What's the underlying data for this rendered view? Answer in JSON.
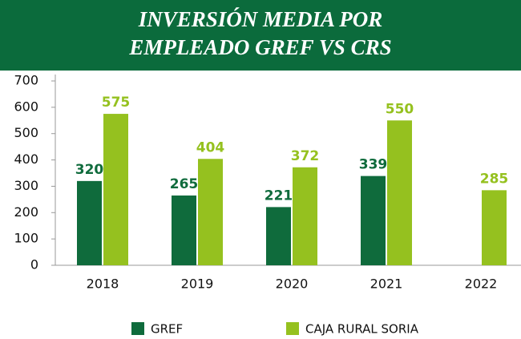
{
  "chart_data": {
    "type": "bar",
    "title": [
      "INVERSIÓN MEDIA POR",
      "EMPLEADO GREF VS CRS"
    ],
    "categories": [
      "2018",
      "2019",
      "2020",
      "2021",
      "2022"
    ],
    "series": [
      {
        "name": "GREF",
        "color": "#0f6b3c",
        "values": [
          320,
          265,
          221,
          339,
          null
        ]
      },
      {
        "name": "CAJA RURAL SORIA",
        "color": "#95c11f",
        "values": [
          575,
          404,
          372,
          550,
          285
        ]
      }
    ],
    "ylim": [
      0,
      700
    ],
    "yticks": [
      0,
      100,
      200,
      300,
      400,
      500,
      600,
      700
    ],
    "grid": false
  }
}
